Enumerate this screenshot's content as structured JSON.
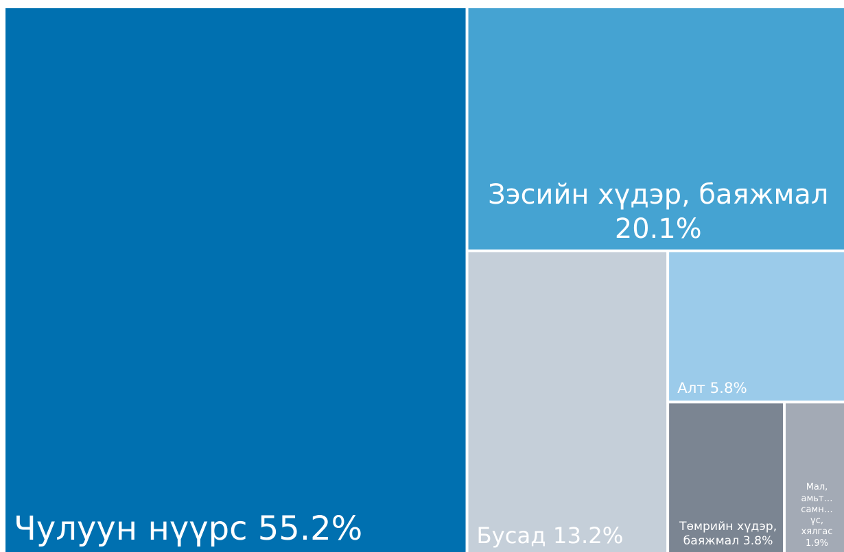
{
  "chart_data": {
    "type": "treemap",
    "categories": [
      "Чулуун нүүрс",
      "Зэсийн хүдэр, баяжмал",
      "Бусад",
      "Алт",
      "Төмрийн хүдэр, баяжмал",
      "Мал, амьт… самн… үс, хялгас"
    ],
    "values": [
      55.2,
      20.1,
      13.2,
      5.8,
      3.8,
      1.9
    ],
    "value_labels": [
      "55.2%",
      "20.1%",
      "13.2%",
      "5.8%",
      "3.8%",
      "1.9%"
    ],
    "colors": [
      "#0070b0",
      "#45a3d2",
      "#c5cfd9",
      "#9bcbea",
      "#7b8592",
      "#a3aab5"
    ]
  }
}
